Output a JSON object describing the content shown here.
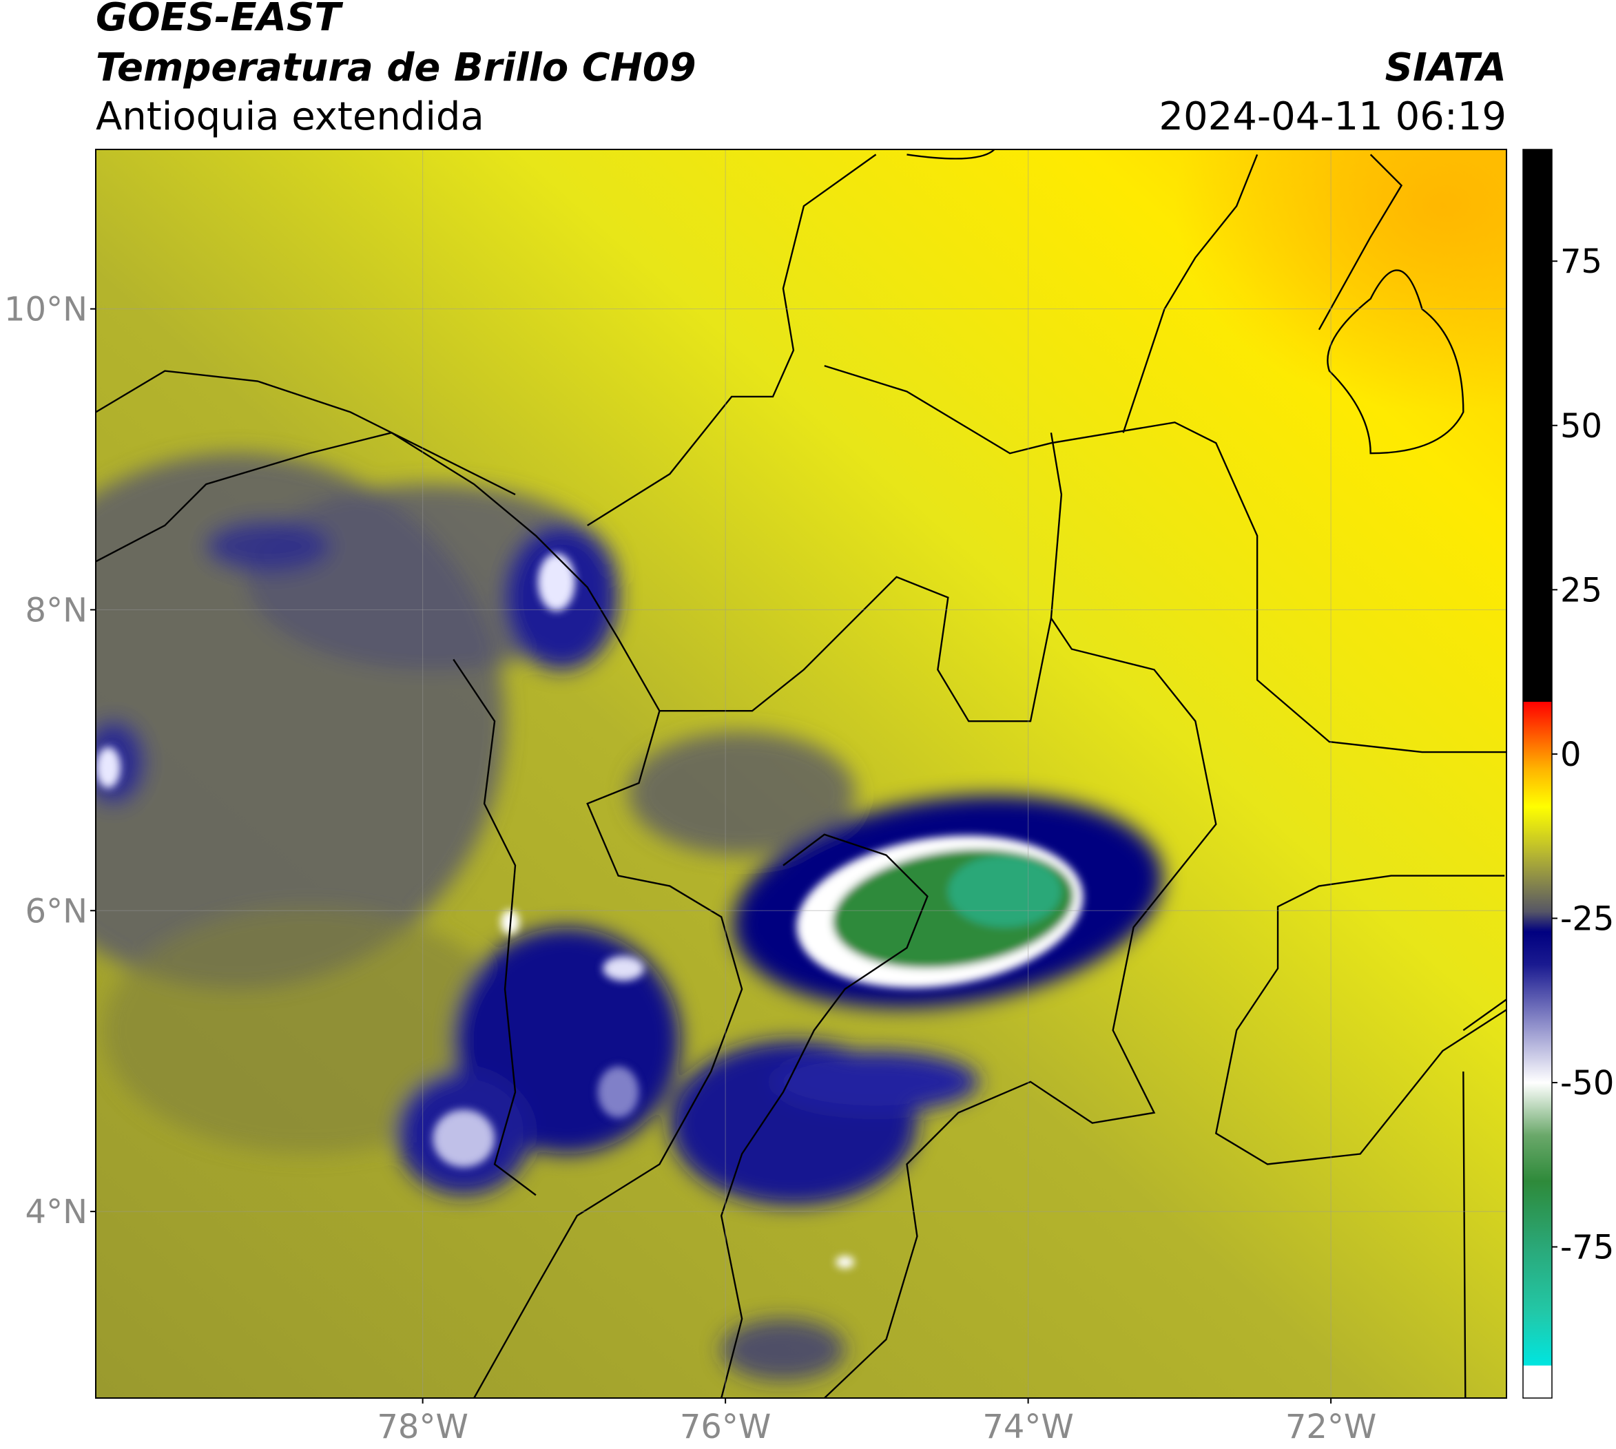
{
  "chart_data": {
    "type": "map",
    "title": "GOES-EAST",
    "subtitle": "Temperatura de Brillo CH09",
    "region": "Antioquia extendida",
    "source": "SIATA",
    "datetime": "2024-04-11 06:19",
    "xlim": [
      -80.16,
      -70.84
    ],
    "ylim": [
      2.76,
      11.06
    ],
    "xticks": [
      {
        "value": -78,
        "label": "78°W"
      },
      {
        "value": -76,
        "label": "76°W"
      },
      {
        "value": -74,
        "label": "74°W"
      },
      {
        "value": -72,
        "label": "72°W"
      }
    ],
    "yticks": [
      {
        "value": 4,
        "label": "4°N"
      },
      {
        "value": 6,
        "label": "6°N"
      },
      {
        "value": 8,
        "label": "8°N"
      },
      {
        "value": 10,
        "label": "10°N"
      }
    ],
    "grid": true,
    "colorbar": {
      "lim": [
        -98,
        92
      ],
      "ticks": [
        -75,
        -50,
        -25,
        0,
        25,
        50,
        75
      ],
      "colors": [
        {
          "value": -98,
          "color": "#ffffff"
        },
        {
          "value": -93,
          "color": "#ffffff"
        },
        {
          "value": -93,
          "color": "#00e5e0"
        },
        {
          "value": -85,
          "color": "#22c8a8"
        },
        {
          "value": -75,
          "color": "#2aa878"
        },
        {
          "value": -65,
          "color": "#2e8a3a"
        },
        {
          "value": -58,
          "color": "#6aa86a"
        },
        {
          "value": -50,
          "color": "#ffffff"
        },
        {
          "value": -42,
          "color": "#9a9ad0"
        },
        {
          "value": -32,
          "color": "#1a1a90"
        },
        {
          "value": -27,
          "color": "#000080"
        },
        {
          "value": -24,
          "color": "#555566"
        },
        {
          "value": -15,
          "color": "#b8b830"
        },
        {
          "value": -8,
          "color": "#ffff00"
        },
        {
          "value": -2,
          "color": "#ffb000"
        },
        {
          "value": 8,
          "color": "#ff0000"
        },
        {
          "value": 8,
          "color": "#000000"
        },
        {
          "value": 92,
          "color": "#000000"
        }
      ]
    }
  }
}
